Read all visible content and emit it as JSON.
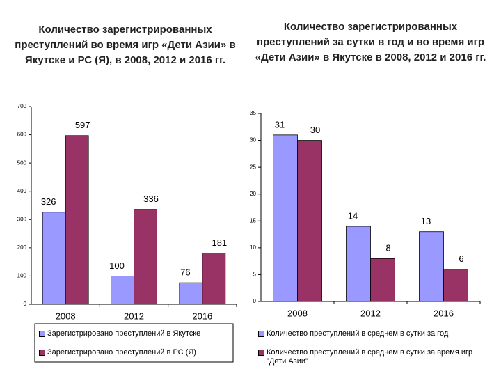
{
  "chart_data": [
    {
      "type": "bar",
      "title": "Количество зарегистрированных преступлений во время игр «Дети Азии» в Якутске и РС (Я), в 2008, 2012 и 2016 гг.",
      "categories": [
        "2008",
        "2012",
        "2016"
      ],
      "series": [
        {
          "name": "Зарегистрировано преступлений в Якутске",
          "color": "#9999ff",
          "values": [
            326,
            100,
            76
          ]
        },
        {
          "name": "Зарегистрировано преступлений в РС (Я)",
          "color": "#993366",
          "values": [
            597,
            336,
            181
          ]
        }
      ],
      "ylim": [
        0,
        700
      ],
      "yticks": [
        0,
        100,
        200,
        300,
        400,
        500,
        600,
        700
      ],
      "grid": false
    },
    {
      "type": "bar",
      "title": "Количество зарегистрированных преступлений за сутки в год и во время игр «Дети Азии» в Якутске в 2008, 2012 и 2016 гг.",
      "categories": [
        "2008",
        "2012",
        "2016"
      ],
      "series": [
        {
          "name": "Количество преступлений в среднем в сутки за год",
          "color": "#9999ff",
          "values": [
            31,
            14,
            13
          ]
        },
        {
          "name": "Количество преступлений в среднем в сутки за время игр \"Дети Азии\"",
          "color": "#993366",
          "values": [
            30,
            8,
            6
          ]
        }
      ],
      "ylim": [
        0,
        35
      ],
      "yticks": [
        0,
        5,
        10,
        15,
        20,
        25,
        30,
        35
      ],
      "grid": false
    }
  ]
}
